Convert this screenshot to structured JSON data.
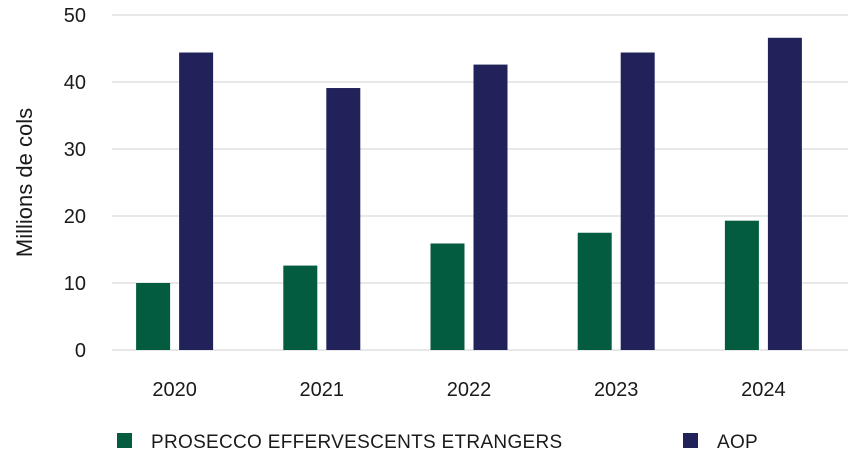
{
  "chart_data": {
    "type": "bar",
    "categories": [
      "2020",
      "2021",
      "2022",
      "2023",
      "2024"
    ],
    "series": [
      {
        "name": "PROSECCO EFFERVESCENTS ETRANGERS",
        "values": [
          10.0,
          12.6,
          15.9,
          17.5,
          19.3
        ],
        "color": "#035c40"
      },
      {
        "name": "AOP",
        "values": [
          44.4,
          39.1,
          42.6,
          44.4,
          46.6
        ],
        "color": "#22225a"
      }
    ],
    "title": "",
    "xlabel": "",
    "ylabel": "Millions de cols",
    "ylim": [
      0,
      50
    ],
    "yticks": [
      0,
      10,
      20,
      30,
      40,
      50
    ],
    "grid": true,
    "legend_position": "bottom"
  }
}
